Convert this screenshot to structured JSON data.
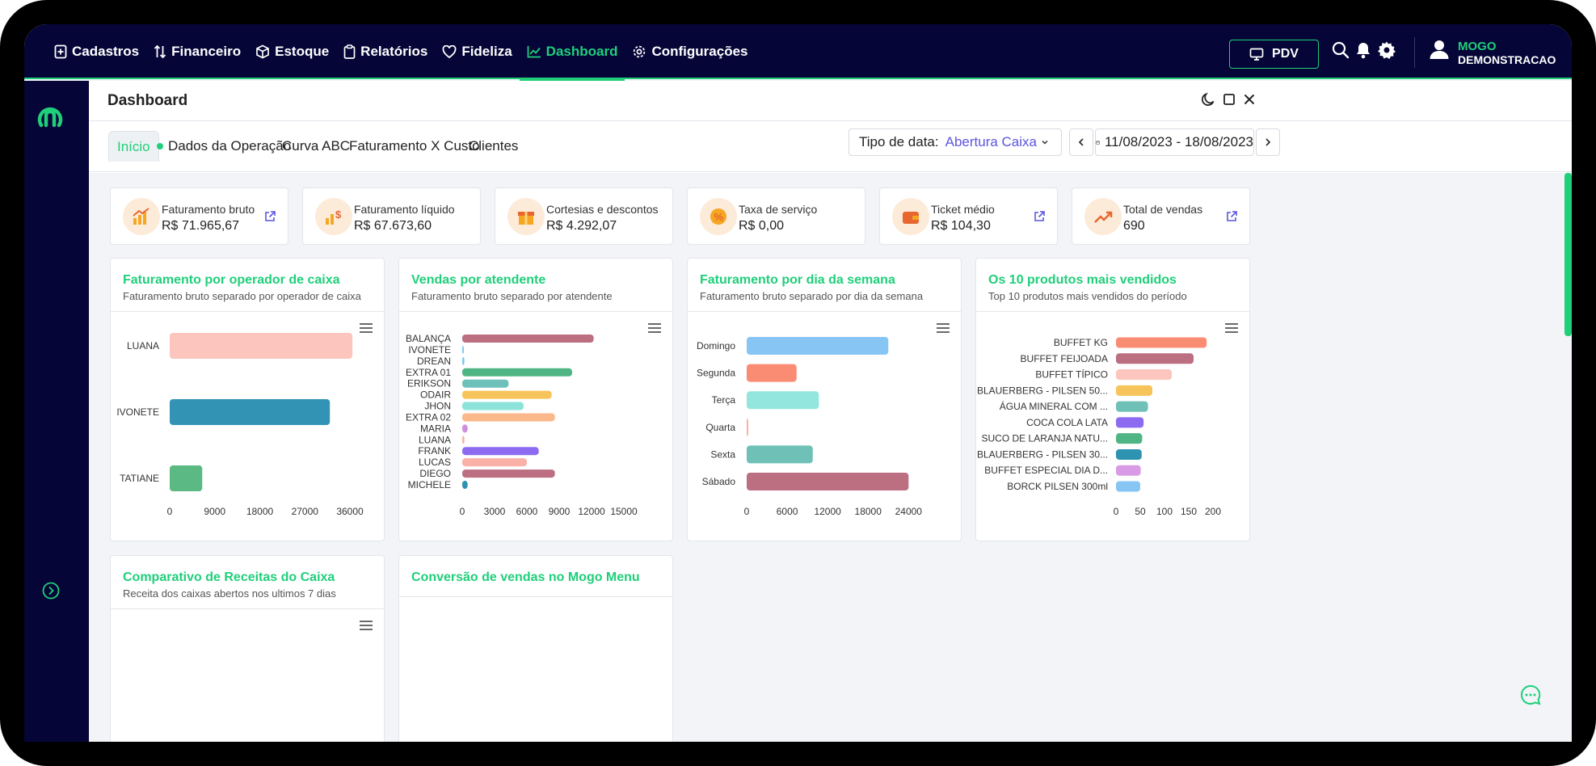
{
  "nav": {
    "items": [
      {
        "label": "Cadastros",
        "icon": "add-box-icon",
        "active": false
      },
      {
        "label": "Financeiro",
        "icon": "swap-arrows-icon",
        "active": false
      },
      {
        "label": "Estoque",
        "icon": "box-icon",
        "active": false
      },
      {
        "label": "Relatórios",
        "icon": "clipboard-icon",
        "active": false
      },
      {
        "label": "Fideliza",
        "icon": "heart-icon",
        "active": false
      },
      {
        "label": "Dashboard",
        "icon": "trend-chart-icon",
        "active": true
      },
      {
        "label": "Configurações",
        "icon": "gear-icon",
        "active": false
      }
    ],
    "pdv_label": "PDV",
    "user": {
      "name": "MOGO",
      "company": "DEMONSTRACAO"
    }
  },
  "colors": {
    "accent": "#1fcf7a",
    "nav_bg": "#050538",
    "link": "#5b55e0"
  },
  "panel": {
    "title": "Dashboard"
  },
  "tabs": [
    {
      "label": "Início",
      "active": true
    },
    {
      "label": "Dados da Operação",
      "active": false,
      "dot": true
    },
    {
      "label": "Curva ABC",
      "active": false
    },
    {
      "label": "Faturamento X Custo",
      "active": false
    },
    {
      "label": "Clientes",
      "active": false
    }
  ],
  "filter": {
    "label": "Tipo de data:",
    "value": "Abertura Caixa"
  },
  "date_range": "11/08/2023 - 18/08/2023",
  "kpis": [
    {
      "label": "Faturamento bruto",
      "value": "R$ 71.965,67",
      "icon": "revenue-chart-icon",
      "link": true
    },
    {
      "label": "Faturamento líquido",
      "value": "R$ 67.673,60",
      "icon": "money-bars-icon",
      "link": false
    },
    {
      "label": "Cortesias e descontos",
      "value": "R$ 4.292,07",
      "icon": "gift-icon",
      "link": false
    },
    {
      "label": "Taxa de serviço",
      "value": "R$ 0,00",
      "icon": "percent-icon",
      "link": false
    },
    {
      "label": "Ticket médio",
      "value": "R$ 104,30",
      "icon": "wallet-icon",
      "link": true
    },
    {
      "label": "Total de vendas",
      "value": "690",
      "icon": "trend-up-icon",
      "link": true
    }
  ],
  "cards": [
    {
      "title": "Faturamento por operador de caixa",
      "subtitle": "Faturamento bruto separado por operador de caixa"
    },
    {
      "title": "Vendas por atendente",
      "subtitle": "Faturamento bruto separado por atendente"
    },
    {
      "title": "Faturamento por dia da semana",
      "subtitle": "Faturamento bruto separado por dia da semana"
    },
    {
      "title": "Os 10 produtos mais vendidos",
      "subtitle": "Top 10 produtos mais vendidos do período"
    },
    {
      "title": "Comparativo de Receitas do Caixa",
      "subtitle": "Receita dos caixas abertos nos ultimos 7 dias"
    },
    {
      "title": "Conversão de vendas no Mogo Menu",
      "subtitle": ""
    }
  ],
  "chart_data": [
    {
      "type": "bar",
      "orientation": "horizontal",
      "categories": [
        "LUANA",
        "IVONETE",
        "TATIANE"
      ],
      "values": [
        36500,
        32000,
        6500
      ],
      "colors": [
        "#fcc5bd",
        "#3393b4",
        "#5bb984"
      ],
      "xlim": [
        0,
        36000
      ],
      "ticks": [
        "0",
        "9000",
        "18000",
        "27000",
        "36000"
      ]
    },
    {
      "type": "bar",
      "orientation": "horizontal",
      "categories": [
        "BALANÇA",
        "IVONETE",
        "DREAN",
        "EXTRA 01",
        "ERIKSON",
        "ODAIR",
        "JHON",
        "EXTRA 02",
        "MARIA",
        "LUANA",
        "FRANK",
        "LUCAS",
        "DIEGO",
        "MICHELE"
      ],
      "values": [
        12200,
        100,
        200,
        10200,
        4300,
        8300,
        5700,
        8600,
        500,
        200,
        7100,
        6000,
        8600,
        500
      ],
      "colors": [
        "#bb6f80",
        "#7bc8f5",
        "#7bc8f5",
        "#4fb584",
        "#6ec0ba",
        "#f6c45a",
        "#8ce3da",
        "#fbb88a",
        "#cf8fe0",
        "#fbb0a8",
        "#8d6bf0",
        "#fbb0a8",
        "#bb6f80",
        "#2e92b1"
      ],
      "xlim": [
        0,
        16500
      ],
      "ticks": [
        "0",
        "3000",
        "6000",
        "9000",
        "12000",
        "15000"
      ]
    },
    {
      "type": "bar",
      "orientation": "horizontal",
      "categories": [
        "Domingo",
        "Segunda",
        "Terça",
        "Quarta",
        "Sexta",
        "Sábado"
      ],
      "values": [
        21000,
        7400,
        10700,
        200,
        9800,
        24000
      ],
      "colors": [
        "#87c5f5",
        "#fb8c74",
        "#92e6dd",
        "#fbb0a8",
        "#6fc1b7",
        "#bb6f80"
      ],
      "xlim": [
        0,
        26000
      ],
      "ticks": [
        "0",
        "6000",
        "12000",
        "18000",
        "24000"
      ]
    },
    {
      "type": "bar",
      "orientation": "horizontal",
      "categories": [
        "BUFFET KG",
        "BUFFET FEIJOADA",
        "BUFFET TÍPICO",
        "BLAUERBERG - PILSEN 50...",
        "ÁGUA MINERAL COM ...",
        "COCA COLA LATA",
        "SUCO DE LARANJA NATU...",
        "BLAUERBERG - PILSEN 30...",
        "BUFFET ESPECIAL DIA D...",
        "BORCK PILSEN 300ml"
      ],
      "values": [
        187,
        160,
        115,
        75,
        66,
        57,
        54,
        53,
        51,
        50
      ],
      "colors": [
        "#fb8c74",
        "#bb6f80",
        "#fcc5bd",
        "#f6c45a",
        "#6fc1b7",
        "#8d6bf0",
        "#4fb584",
        "#2e92b1",
        "#d99be6",
        "#87c5f5"
      ],
      "xlim": [
        0,
        220
      ],
      "ticks": [
        "0",
        "50",
        "100",
        "150",
        "200"
      ]
    }
  ]
}
